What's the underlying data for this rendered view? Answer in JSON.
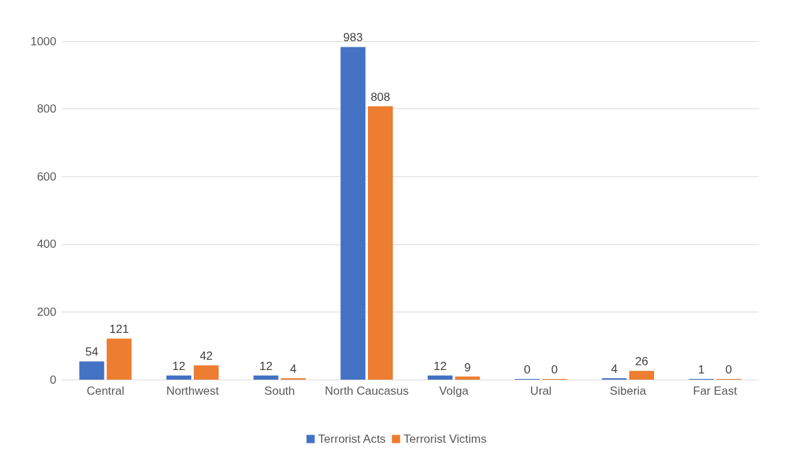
{
  "chart_data": {
    "type": "bar",
    "categories": [
      "Central",
      "Northwest",
      "South",
      "North Caucasus",
      "Volga",
      "Ural",
      "Siberia",
      "Far East"
    ],
    "series": [
      {
        "name": "Terrorist Acts",
        "color": "#4472c4",
        "values": [
          54,
          12,
          12,
          983,
          12,
          0,
          4,
          1
        ]
      },
      {
        "name": "Terrorist Victims",
        "color": "#ed7d31",
        "values": [
          121,
          42,
          4,
          808,
          9,
          0,
          26,
          0
        ]
      }
    ],
    "ylim": [
      0,
      1000
    ],
    "yticks": [
      0,
      200,
      400,
      600,
      800,
      1000
    ],
    "grid": "y",
    "legend": "bottom",
    "data_labels": true
  }
}
